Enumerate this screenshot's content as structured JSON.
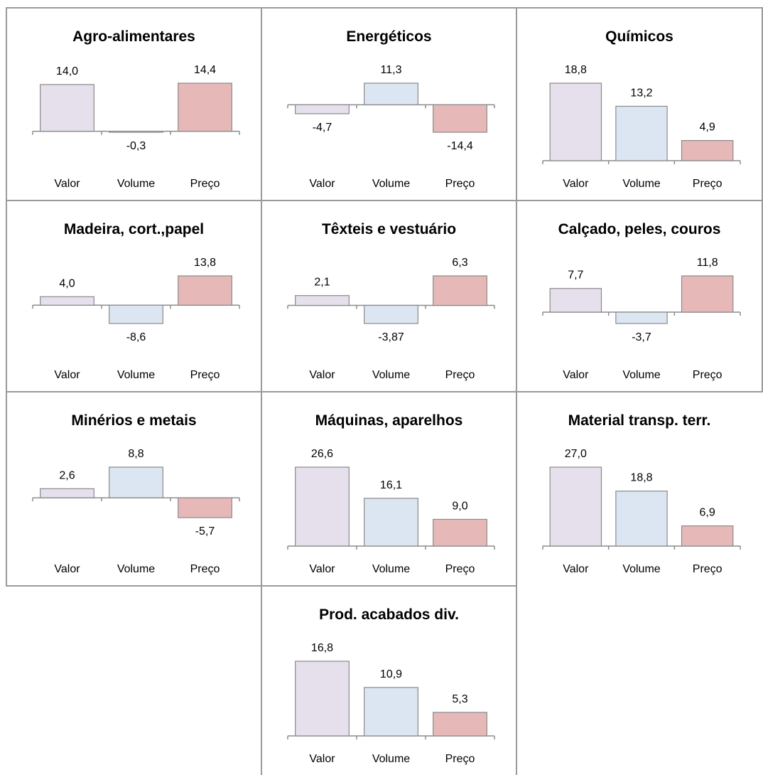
{
  "chart_data": [
    {
      "type": "bar",
      "title": "Agro-alimentares",
      "categories": [
        "Valor",
        "Volume",
        "Preço"
      ],
      "values": [
        14.0,
        -0.3,
        14.4
      ],
      "value_labels": [
        "14,0",
        "-0,3",
        "14,4"
      ],
      "colors": [
        "#e6e0ec",
        "#dce6f2",
        "#e6b9b8"
      ]
    },
    {
      "type": "bar",
      "title": "Energéticos",
      "categories": [
        "Valor",
        "Volume",
        "Preço"
      ],
      "values": [
        -4.7,
        11.3,
        -14.4
      ],
      "value_labels": [
        "-4,7",
        "11,3",
        "-14,4"
      ],
      "colors": [
        "#e6e0ec",
        "#dce6f2",
        "#e6b9b8"
      ]
    },
    {
      "type": "bar",
      "title": "Químicos",
      "categories": [
        "Valor",
        "Volume",
        "Preço"
      ],
      "values": [
        18.8,
        13.2,
        4.9
      ],
      "value_labels": [
        "18,8",
        "13,2",
        "4,9"
      ],
      "colors": [
        "#e6e0ec",
        "#dce6f2",
        "#e6b9b8"
      ]
    },
    {
      "type": "bar",
      "title": "Madeira, cort.,papel",
      "categories": [
        "Valor",
        "Volume",
        "Preço"
      ],
      "values": [
        4.0,
        -8.6,
        13.8
      ],
      "value_labels": [
        "4,0",
        "-8,6",
        "13,8"
      ],
      "colors": [
        "#e6e0ec",
        "#dce6f2",
        "#e6b9b8"
      ]
    },
    {
      "type": "bar",
      "title": "Têxteis e vestuário",
      "categories": [
        "Valor",
        "Volume",
        "Preço"
      ],
      "values": [
        2.1,
        -3.87,
        6.3
      ],
      "value_labels": [
        "2,1",
        "-3,87",
        "6,3"
      ],
      "colors": [
        "#e6e0ec",
        "#dce6f2",
        "#e6b9b8"
      ]
    },
    {
      "type": "bar",
      "title": "Calçado, peles, couros",
      "categories": [
        "Valor",
        "Volume",
        "Preço"
      ],
      "values": [
        7.7,
        -3.7,
        11.8
      ],
      "value_labels": [
        "7,7",
        "-3,7",
        "11,8"
      ],
      "colors": [
        "#e6e0ec",
        "#dce6f2",
        "#e6b9b8"
      ]
    },
    {
      "type": "bar",
      "title": "Minérios e metais",
      "categories": [
        "Valor",
        "Volume",
        "Preço"
      ],
      "values": [
        2.6,
        8.8,
        -5.7
      ],
      "value_labels": [
        "2,6",
        "8,8",
        "-5,7"
      ],
      "colors": [
        "#e6e0ec",
        "#dce6f2",
        "#e6b9b8"
      ]
    },
    {
      "type": "bar",
      "title": "Máquinas, aparelhos",
      "categories": [
        "Valor",
        "Volume",
        "Preço"
      ],
      "values": [
        26.6,
        16.1,
        9.0
      ],
      "value_labels": [
        "26,6",
        "16,1",
        "9,0"
      ],
      "colors": [
        "#e6e0ec",
        "#dce6f2",
        "#e6b9b8"
      ]
    },
    {
      "type": "bar",
      "title": "Material transp. terr.",
      "categories": [
        "Valor",
        "Volume",
        "Preço"
      ],
      "values": [
        27.0,
        18.8,
        6.9
      ],
      "value_labels": [
        "27,0",
        "18,8",
        "6,9"
      ],
      "colors": [
        "#e6e0ec",
        "#dce6f2",
        "#e6b9b8"
      ]
    },
    {
      "type": "bar",
      "title": "Prod. acabados div.",
      "categories": [
        "Valor",
        "Volume",
        "Preço"
      ],
      "values": [
        16.8,
        10.9,
        5.3
      ],
      "value_labels": [
        "16,8",
        "10,9",
        "5,3"
      ],
      "colors": [
        "#e6e0ec",
        "#dce6f2",
        "#e6b9b8"
      ]
    }
  ]
}
